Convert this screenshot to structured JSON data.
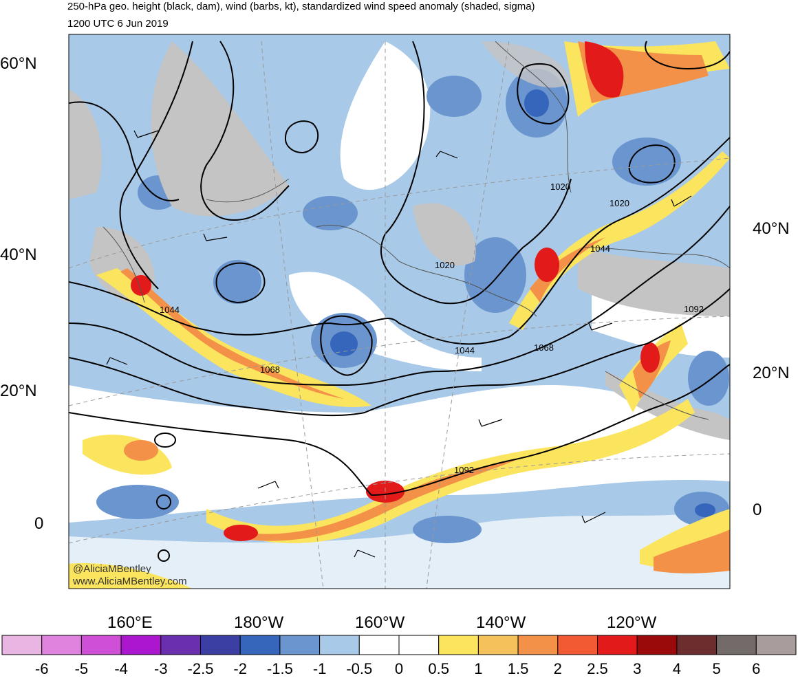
{
  "title": {
    "line1": "250-hPa geo. height (black, dam), wind (barbs, kt), standardized wind speed anomaly (shaded, sigma)",
    "line2": "1200 UTC 6 Jun 2019"
  },
  "credit": {
    "handle": "@AliciaMBentley",
    "website": "www.AliciaMBentley.com"
  },
  "axes": {
    "left_lat": [
      "60°N",
      "40°N",
      "20°N",
      "0"
    ],
    "right_lat": [
      "40°N",
      "20°N",
      "0"
    ],
    "bottom_lon": [
      "160°E",
      "180°W",
      "160°W",
      "140°W",
      "120°W"
    ]
  },
  "contour_labels": [
    "1020",
    "1020",
    "1020",
    "1044",
    "1044",
    "1044",
    "1068",
    "1068",
    "1092",
    "1092"
  ],
  "colorbar": {
    "labels": [
      "-6",
      "-5",
      "-4",
      "-3",
      "-2.5",
      "-2",
      "-1.5",
      "-1",
      "-0.5",
      "0",
      "0.5",
      "1",
      "1.5",
      "2",
      "2.5",
      "3",
      "4",
      "5",
      "6"
    ],
    "colors": [
      "#e9b6e4",
      "#e083de",
      "#d04fd7",
      "#ad16cf",
      "#6a2fae",
      "#3b3fa3",
      "#3566bb",
      "#6a95cf",
      "#a8c9e7",
      "#ffffff",
      "#ffffff",
      "#fbe45e",
      "#f4c15a",
      "#f29147",
      "#f15a33",
      "#e21a1a",
      "#9a0a0a",
      "#6b2d2d",
      "#736a6a",
      "#a89c9c"
    ]
  }
}
